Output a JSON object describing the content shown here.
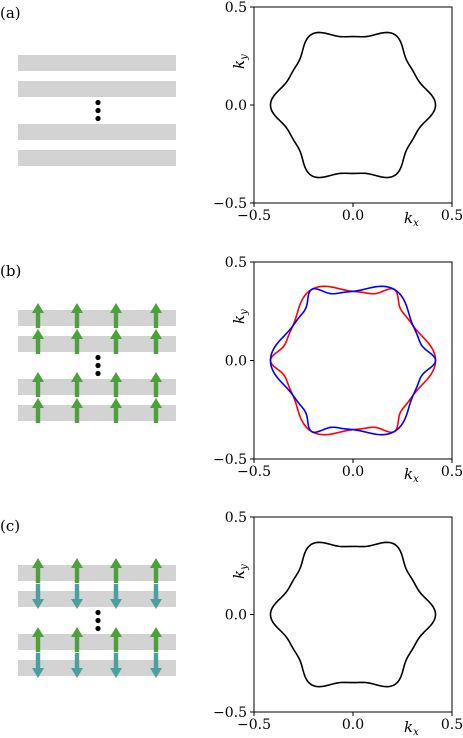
{
  "panels": [
    {
      "label": "(a)",
      "config": "none"
    },
    {
      "label": "(b)",
      "config": "ferro"
    },
    {
      "label": "(c)",
      "config": "antiferro"
    }
  ],
  "colors": {
    "layer": "#d3d3d3",
    "arrow_up": "#4ba13a",
    "arrow_down": "#4a9fa0",
    "dots": "#000000"
  },
  "axis_text": {
    "kx_main": "k",
    "kx_sub": "x",
    "ky_main": "k",
    "ky_sub": "y"
  },
  "chart_data": [
    {
      "type": "line",
      "title": "",
      "xlabel": "k_x",
      "ylabel": "k_y",
      "xlim": [
        -0.5,
        0.5
      ],
      "ylim": [
        -0.5,
        0.5
      ],
      "xticks": [
        "−0.5",
        "0.0",
        "0.5"
      ],
      "yticks": [
        "−0.5",
        "0.0",
        "0.5"
      ],
      "grid": false,
      "series": [
        {
          "color": "#000000",
          "shape": {
            "r0": 0.375,
            "a6": 0.045,
            "phase_deg": 0,
            "offset_deg": 0,
            "flip_y": false
          }
        }
      ]
    },
    {
      "type": "line",
      "title": "",
      "xlabel": "k_x",
      "ylabel": "k_y",
      "xlim": [
        -0.5,
        0.5
      ],
      "ylim": [
        -0.5,
        0.5
      ],
      "xticks": [
        "−0.5",
        "0.0",
        "0.5"
      ],
      "yticks": [
        "−0.5",
        "0.0",
        "0.5"
      ],
      "grid": false,
      "series": [
        {
          "color": "#ff0000",
          "shape": {
            "r0": 0.375,
            "a6": 0.045,
            "phase_deg": 0,
            "offset_deg": 8,
            "flip_y": false
          }
        },
        {
          "color": "#0000ff",
          "shape": {
            "r0": 0.375,
            "a6": 0.045,
            "phase_deg": 0,
            "offset_deg": -8,
            "flip_y": false
          }
        }
      ]
    },
    {
      "type": "line",
      "title": "",
      "xlabel": "k_x",
      "ylabel": "k_y",
      "xlim": [
        -0.5,
        0.5
      ],
      "ylim": [
        -0.5,
        0.5
      ],
      "xticks": [
        "−0.5",
        "0.0",
        "0.5"
      ],
      "yticks": [
        "−0.5",
        "0.0",
        "0.5"
      ],
      "grid": false,
      "series": [
        {
          "color": "#000000",
          "shape": {
            "r0": 0.375,
            "a6": 0.045,
            "phase_deg": 0,
            "offset_deg": 0,
            "flip_y": false
          }
        }
      ]
    }
  ]
}
